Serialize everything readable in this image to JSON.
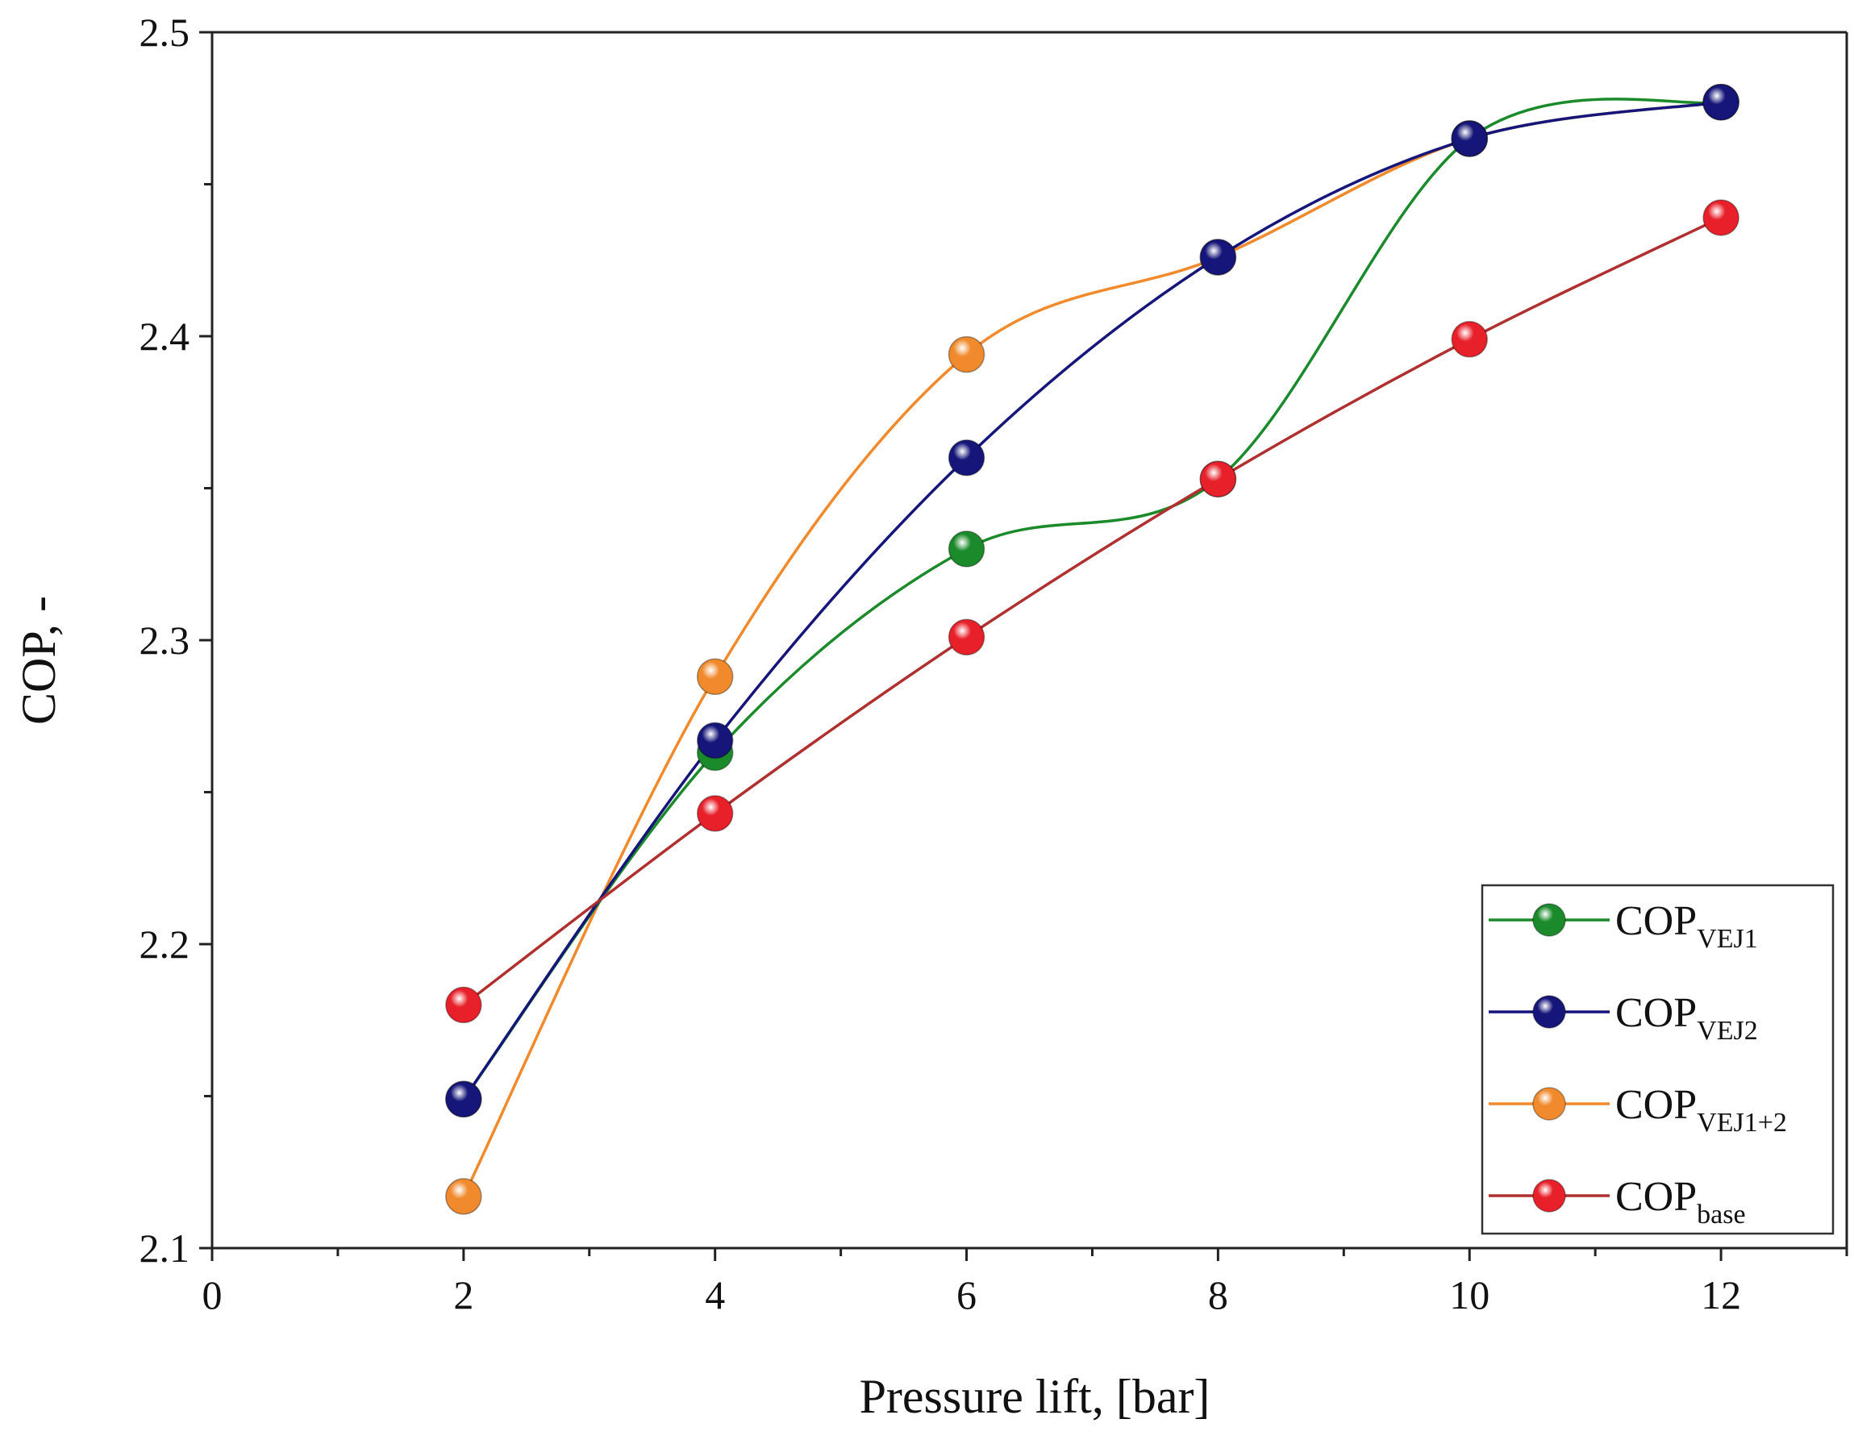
{
  "chart_data": {
    "type": "line",
    "xlabel": "Pressure lift, [bar]",
    "ylabel": "COP, -",
    "xlim": [
      0,
      13
    ],
    "ylim": [
      2.1,
      2.5
    ],
    "x_ticks": [
      0,
      2,
      4,
      6,
      8,
      10,
      12
    ],
    "x_tick_labels": [
      "0",
      "2",
      "4",
      "6",
      "8",
      "10",
      "12"
    ],
    "y_ticks": [
      2.1,
      2.2,
      2.3,
      2.4,
      2.5
    ],
    "y_tick_labels": [
      "2.1",
      "2.2",
      "2.3",
      "2.4",
      "2.5"
    ],
    "legend_position": "bottom-right",
    "grid": false,
    "series": [
      {
        "name": "COP_VEJ1",
        "legend_main": "COP",
        "legend_sub": "VEJ1",
        "color": "#1a8a2a",
        "x": [
          2,
          4,
          6,
          8,
          10,
          12
        ],
        "y": [
          2.149,
          2.263,
          2.33,
          2.353,
          2.465,
          2.477
        ]
      },
      {
        "name": "COP_VEJ2",
        "legend_main": "COP",
        "legend_sub": "VEJ2",
        "color": "#15157a",
        "x": [
          2,
          4,
          6,
          8,
          10,
          12
        ],
        "y": [
          2.149,
          2.267,
          2.36,
          2.426,
          2.465,
          2.477
        ]
      },
      {
        "name": "COP_VEJ1+2",
        "legend_main": "COP",
        "legend_sub": "VEJ1+2",
        "color": "#f08a2c",
        "x": [
          2,
          4,
          6,
          8,
          10,
          12
        ],
        "y": [
          2.117,
          2.288,
          2.394,
          2.426,
          2.465,
          2.477
        ]
      },
      {
        "name": "COP_base",
        "legend_main": "COP",
        "legend_sub": "base",
        "color": "#e8202a",
        "line_color": "#b03030",
        "x": [
          2,
          4,
          6,
          8,
          10,
          12
        ],
        "y": [
          2.18,
          2.243,
          2.301,
          2.353,
          2.399,
          2.439
        ]
      }
    ]
  }
}
